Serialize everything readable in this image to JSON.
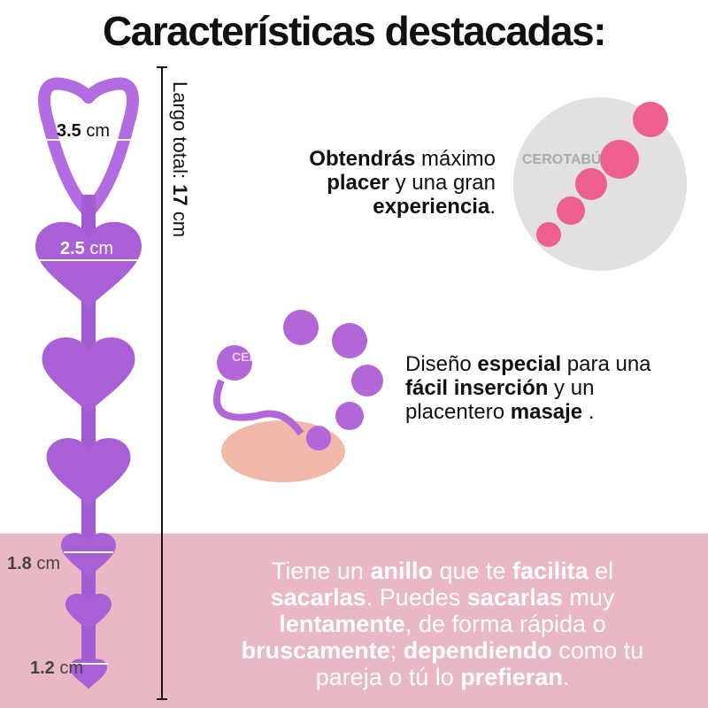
{
  "title": "Características destacadas:",
  "measures": [
    {
      "value": "3.5",
      "unit": " cm"
    },
    {
      "value": "2.5",
      "unit": " cm"
    },
    {
      "value": "1.8",
      "unit": " cm"
    },
    {
      "value": "1.2",
      "unit": " cm"
    }
  ],
  "total_length": {
    "label": "Largo total: ",
    "value": "17",
    "unit": " cm"
  },
  "watermarks": [
    "CEROTABÚ",
    "CEROTABÚ"
  ],
  "feature_1": {
    "lines": [
      [
        {
          "text": "Obtendrás",
          "bold": true
        },
        {
          "text": " máximo",
          "bold": false
        }
      ],
      [
        {
          "text": "placer",
          "bold": true
        },
        {
          "text": " y una gran",
          "bold": false
        }
      ],
      [
        {
          "text": "experiencia",
          "bold": true
        },
        {
          "text": ".",
          "bold": false
        }
      ]
    ]
  },
  "feature_2": {
    "lines": [
      [
        {
          "text": "Diseño ",
          "bold": false
        },
        {
          "text": "especial",
          "bold": true
        },
        {
          "text": " para una",
          "bold": false
        }
      ],
      [
        {
          "text": "fácil inserción",
          "bold": true
        },
        {
          "text": " y un",
          "bold": false
        }
      ],
      [
        {
          "text": "placentero ",
          "bold": false
        },
        {
          "text": "masaje",
          "bold": true
        },
        {
          "text": " .",
          "bold": false
        }
      ]
    ]
  },
  "feature_3": {
    "lines": [
      [
        {
          "text": "Tiene un ",
          "bold": false
        },
        {
          "text": "anillo",
          "bold": true
        },
        {
          "text": " que te ",
          "bold": false
        },
        {
          "text": "facilita",
          "bold": true
        },
        {
          "text": " el",
          "bold": false
        }
      ],
      [
        {
          "text": "sacarlas",
          "bold": true
        },
        {
          "text": ". Puedes ",
          "bold": false
        },
        {
          "text": "sacarlas",
          "bold": true
        },
        {
          "text": " muy",
          "bold": false
        }
      ],
      [
        {
          "text": "lentamente",
          "bold": true
        },
        {
          "text": ", de forma rápida o",
          "bold": false
        }
      ],
      [
        {
          "text": "bruscamente",
          "bold": true
        },
        {
          "text": "; ",
          "bold": false
        },
        {
          "text": "dependiendo",
          "bold": true
        },
        {
          "text": " como tu",
          "bold": false
        }
      ],
      [
        {
          "text": "pareja o tú lo ",
          "bold": false
        },
        {
          "text": "prefieran",
          "bold": true
        },
        {
          "text": ".",
          "bold": false
        }
      ]
    ]
  }
}
